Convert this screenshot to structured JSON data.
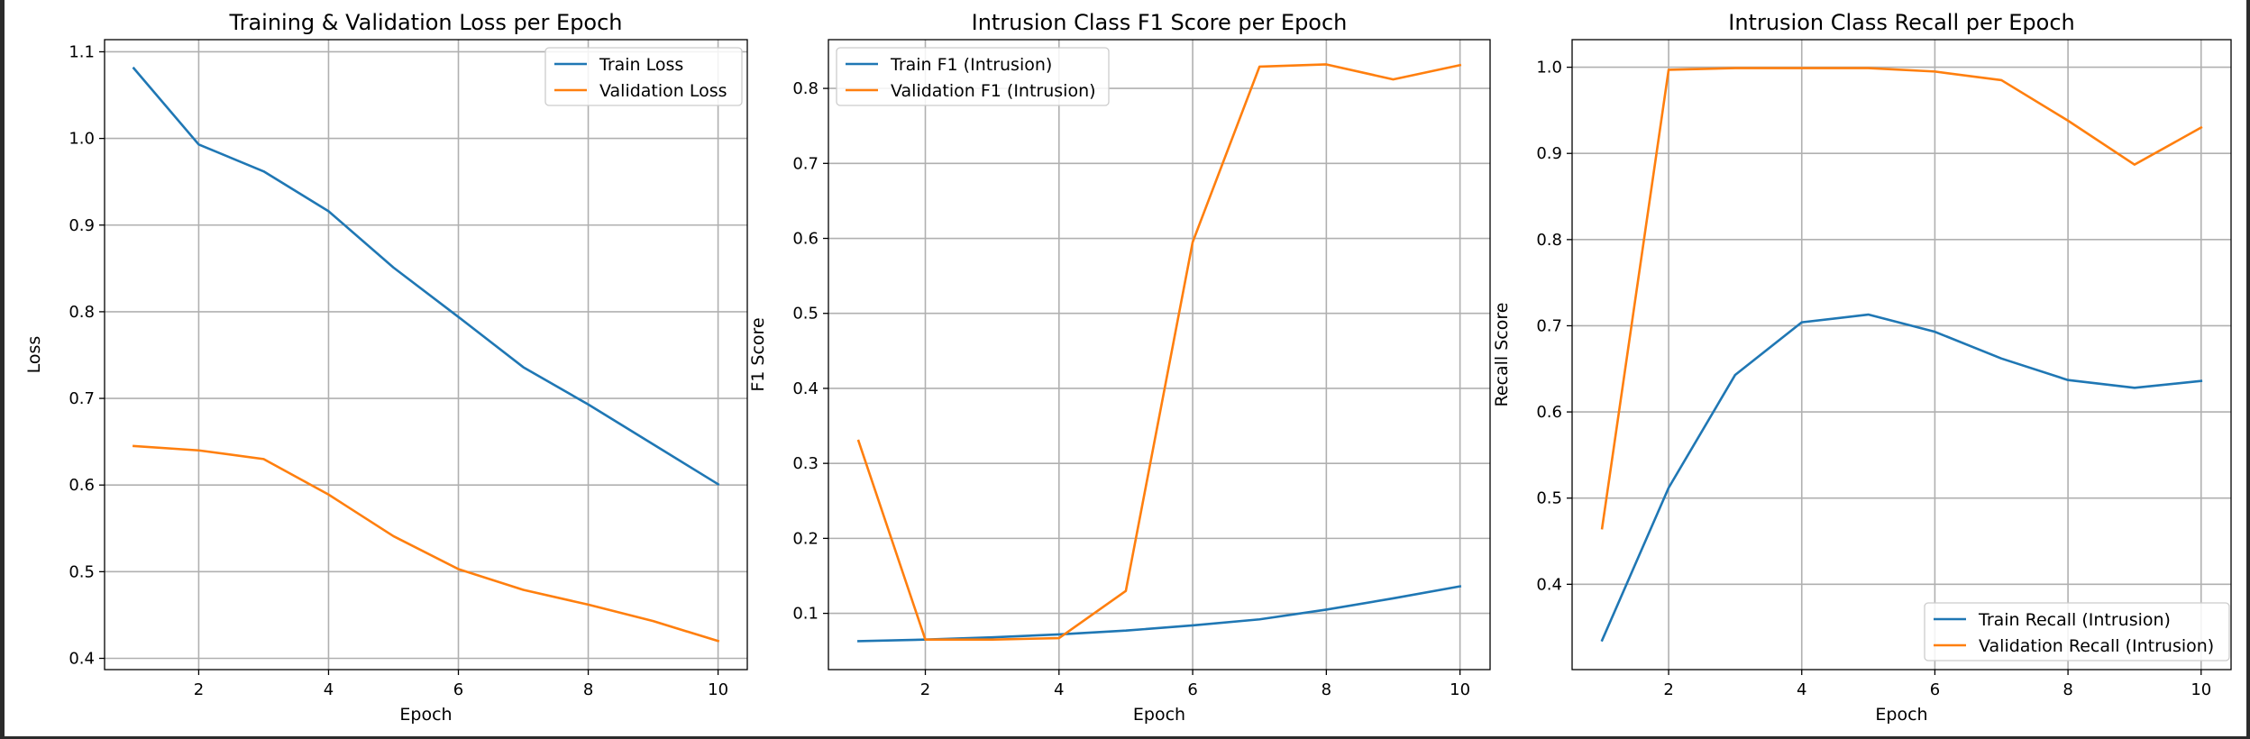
{
  "chart_data": [
    {
      "type": "line",
      "title": "Training & Validation Loss per Epoch",
      "xlabel": "Epoch",
      "ylabel": "Loss",
      "x": [
        1,
        2,
        3,
        4,
        5,
        6,
        7,
        8,
        9,
        10
      ],
      "xticks": [
        2,
        4,
        6,
        8,
        10
      ],
      "yticks": [
        0.4,
        0.5,
        0.6,
        0.7,
        0.8,
        0.9,
        1.0,
        1.1
      ],
      "ytick_labels": [
        "0.4",
        "0.5",
        "0.6",
        "0.7",
        "0.8",
        "0.9",
        "1.0",
        "1.1"
      ],
      "xlim": [
        0.55,
        10.45
      ],
      "ylim": [
        0.387,
        1.114
      ],
      "grid": true,
      "legend_position": "upper right",
      "series": [
        {
          "name": "Train Loss",
          "color": "#1f77b4",
          "values": [
            1.081,
            0.993,
            0.962,
            0.916,
            0.851,
            0.794,
            0.736,
            0.693,
            0.647,
            0.601
          ]
        },
        {
          "name": "Validation Loss",
          "color": "#ff7f0e",
          "values": [
            0.645,
            0.64,
            0.63,
            0.589,
            0.541,
            0.503,
            0.479,
            0.462,
            0.443,
            0.42
          ]
        }
      ]
    },
    {
      "type": "line",
      "title": "Intrusion Class F1 Score per Epoch",
      "xlabel": "Epoch",
      "ylabel": "F1 Score",
      "x": [
        1,
        2,
        3,
        4,
        5,
        6,
        7,
        8,
        9,
        10
      ],
      "xticks": [
        2,
        4,
        6,
        8,
        10
      ],
      "yticks": [
        0.1,
        0.2,
        0.3,
        0.4,
        0.5,
        0.6,
        0.7,
        0.8
      ],
      "ytick_labels": [
        "0.1",
        "0.2",
        "0.3",
        "0.4",
        "0.5",
        "0.6",
        "0.7",
        "0.8"
      ],
      "xlim": [
        0.55,
        10.45
      ],
      "ylim": [
        0.025,
        0.865
      ],
      "grid": true,
      "legend_position": "upper left",
      "series": [
        {
          "name": "Train F1 (Intrusion)",
          "color": "#1f77b4",
          "values": [
            0.063,
            0.065,
            0.068,
            0.072,
            0.077,
            0.084,
            0.092,
            0.105,
            0.12,
            0.136
          ]
        },
        {
          "name": "Validation F1 (Intrusion)",
          "color": "#ff7f0e",
          "values": [
            0.33,
            0.065,
            0.065,
            0.067,
            0.13,
            0.595,
            0.829,
            0.832,
            0.812,
            0.831
          ]
        }
      ]
    },
    {
      "type": "line",
      "title": "Intrusion Class Recall per Epoch",
      "xlabel": "Epoch",
      "ylabel": "Recall Score",
      "x": [
        1,
        2,
        3,
        4,
        5,
        6,
        7,
        8,
        9,
        10
      ],
      "xticks": [
        2,
        4,
        6,
        8,
        10
      ],
      "yticks": [
        0.4,
        0.5,
        0.6,
        0.7,
        0.8,
        0.9,
        1.0
      ],
      "ytick_labels": [
        "0.4",
        "0.5",
        "0.6",
        "0.7",
        "0.8",
        "0.9",
        "1.0"
      ],
      "xlim": [
        0.55,
        10.45
      ],
      "ylim": [
        0.301,
        1.032
      ],
      "grid": true,
      "legend_position": "lower right",
      "series": [
        {
          "name": "Train Recall (Intrusion)",
          "color": "#1f77b4",
          "values": [
            0.335,
            0.512,
            0.643,
            0.704,
            0.713,
            0.693,
            0.662,
            0.637,
            0.628,
            0.636
          ]
        },
        {
          "name": "Validation Recall (Intrusion)",
          "color": "#ff7f0e",
          "values": [
            0.465,
            0.997,
            0.999,
            0.999,
            0.999,
            0.995,
            0.985,
            0.938,
            0.887,
            0.93
          ]
        }
      ]
    }
  ]
}
